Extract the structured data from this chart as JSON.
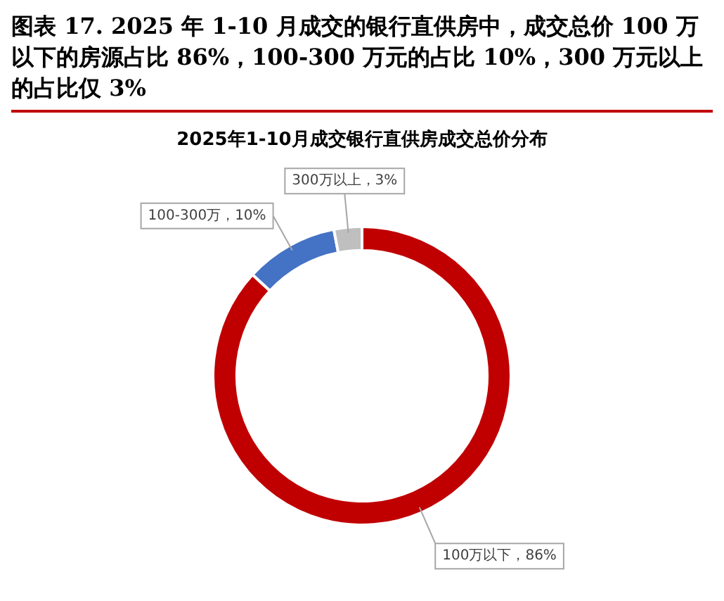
{
  "chart_data": {
    "type": "donut",
    "title": "图表 17. 2025 年 1-10 月成交的银行直供房中，成交总价 100 万以下的房源占比 86%，100-300 万元的占比 10%，300 万元以上的占比仅 3%",
    "subtitle": "2025年1-10月成交银行直供房成交总价分布",
    "categories": [
      "100万以下",
      "100-300万",
      "300万以上"
    ],
    "values": [
      86,
      10,
      3
    ],
    "colors": [
      "#c00000",
      "#4472c4",
      "#bfbfbf"
    ],
    "value_labels": [
      "86%",
      "10%",
      "3%"
    ],
    "legend": false
  }
}
